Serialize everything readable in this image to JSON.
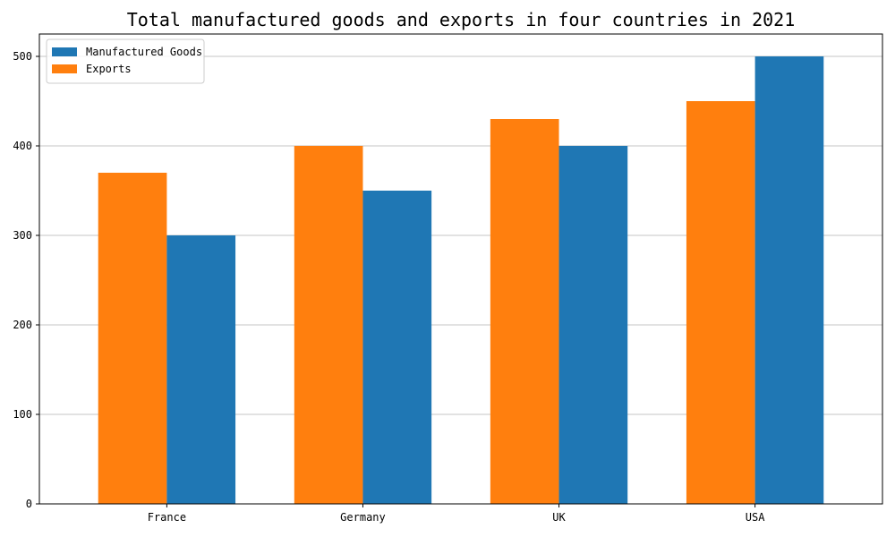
{
  "chart_data": {
    "type": "bar",
    "title": "Total manufactured goods and exports in four countries in 2021",
    "xlabel": "",
    "ylabel": "",
    "categories": [
      "France",
      "Germany",
      "UK",
      "USA"
    ],
    "series": [
      {
        "name": "Exports",
        "color": "#ff7f0e",
        "values": [
          370,
          400,
          430,
          450
        ]
      },
      {
        "name": "Manufactured Goods",
        "color": "#1f77b4",
        "values": [
          300,
          350,
          400,
          500
        ]
      }
    ],
    "legend_order": [
      "Manufactured Goods",
      "Exports"
    ],
    "legend_position": "top-left",
    "ylim": [
      0,
      525
    ],
    "yticks": [
      0,
      100,
      200,
      300,
      400,
      500
    ],
    "grid": "horizontal"
  }
}
